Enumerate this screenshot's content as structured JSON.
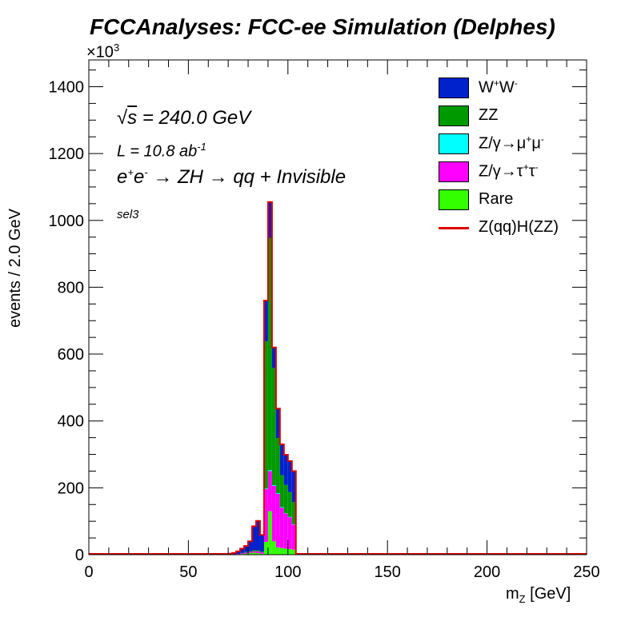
{
  "chart_data": {
    "type": "bar",
    "stacked": true,
    "title": "FCCAnalyses: FCC-ee Simulation (Delphes)",
    "y_exponent_label": "×10",
    "y_exponent_power": "3",
    "xlabel_base": "m",
    "xlabel_sub": "Z",
    "xlabel_unit": " [GeV]",
    "ylabel": "events / 2.0 GeV",
    "xlim": [
      0,
      250
    ],
    "ylim": [
      0,
      1480
    ],
    "bin_width": 2.0,
    "x_ticks": [
      0,
      50,
      100,
      150,
      200,
      250
    ],
    "y_ticks": [
      0,
      200,
      400,
      600,
      800,
      1000,
      1200,
      1400
    ],
    "x": [
      66,
      68,
      70,
      72,
      74,
      76,
      78,
      80,
      82,
      84,
      86,
      88,
      90,
      92,
      94,
      96,
      98,
      100,
      102,
      104
    ],
    "series": [
      {
        "name": "Rare",
        "color": "#33ff00",
        "values": [
          0,
          0,
          0,
          0,
          1,
          2,
          3,
          5,
          6,
          5,
          3,
          38,
          130,
          40,
          22,
          20,
          18,
          17,
          15,
          0
        ]
      },
      {
        "name": "Z/γ→τ⁺τ⁻",
        "color": "#ff00ff",
        "values": [
          0,
          0,
          0,
          0,
          1,
          2,
          3,
          3,
          4,
          5,
          4,
          158,
          120,
          166,
          160,
          120,
          105,
          95,
          75,
          0
        ]
      },
      {
        "name": "Z/γ→μ⁺μ⁻",
        "color": "#00ffff",
        "values": [
          0,
          0,
          0,
          0,
          0,
          0,
          0,
          0,
          0,
          0,
          0,
          2,
          3,
          2,
          2,
          2,
          1,
          1,
          1,
          0
        ]
      },
      {
        "name": "ZZ",
        "color": "#009900",
        "values": [
          0,
          0,
          0,
          0,
          0,
          1,
          2,
          2,
          3,
          3,
          2,
          440,
          695,
          350,
          165,
          96,
          85,
          74,
          66,
          0
        ]
      },
      {
        "name": "W⁺W⁻",
        "color": "#0022cc",
        "values": [
          0,
          2,
          3,
          5,
          8,
          13,
          18,
          30,
          72,
          88,
          50,
          122,
          107,
          62,
          88,
          92,
          90,
          93,
          93,
          0
        ]
      }
    ],
    "total_line": {
      "name": "Z(qq)H(ZZ)",
      "color": "#e00000"
    },
    "legend_position": "top-right",
    "grid": false
  },
  "annotations": {
    "sqrt_symbol": "√",
    "sqrt_s": "s",
    "energy": " = 240.0 GeV",
    "lumi_prefix": "L = 10.8 ab",
    "lumi_exp": "-1",
    "process_e1": "e",
    "process_e1_sup": "+",
    "process_e2": "e",
    "process_e2_sup": "-",
    "process_rest": " → ZH → qq + Invisible",
    "selection": "sel3"
  },
  "legend": {
    "ww_base": "W",
    "ww_sup1": "+",
    "ww_base2": "W",
    "ww_sup2": "-",
    "zz": "ZZ",
    "zmumu": "Z/γ→μ",
    "zmumu_sup1": "+",
    "zmumu_mid": "μ",
    "zmumu_sup2": "-",
    "ztautau": "Z/γ→τ",
    "ztautau_sup1": "+",
    "ztautau_mid": "τ",
    "ztautau_sup2": "-",
    "rare": "Rare",
    "signal": "Z(qq)H(ZZ)",
    "colors": {
      "ww": "#0022cc",
      "zz": "#009900",
      "zmumu": "#00ffff",
      "ztautau": "#ff00ff",
      "rare": "#33ff00"
    }
  }
}
